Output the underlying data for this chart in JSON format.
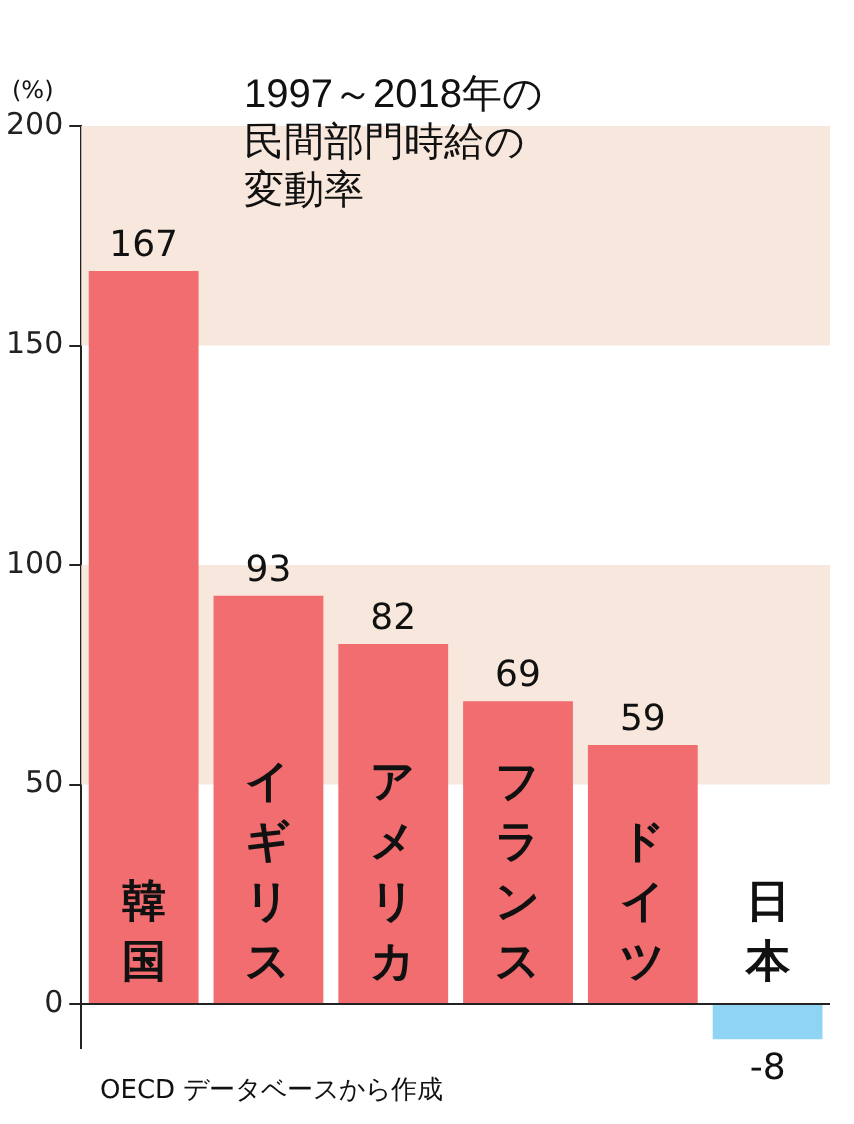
{
  "chart_data": {
    "type": "bar",
    "title": "1997～2018年の民間部門時給の変動率",
    "ylabel": "(%)",
    "categories": [
      "韓国",
      "イギリス",
      "アメリカ",
      "フランス",
      "ドイツ",
      "日本"
    ],
    "values": [
      167,
      93,
      82,
      69,
      59,
      -8
    ],
    "colors": [
      "#f26d6f",
      "#f26d6f",
      "#f26d6f",
      "#f26d6f",
      "#f26d6f",
      "#8fd4f2"
    ],
    "ylim": [
      -10,
      200
    ],
    "yticks": [
      0,
      50,
      100,
      150,
      200
    ],
    "grid": false,
    "data_labels": true,
    "bands": [
      {
        "axis": "y",
        "from": 50,
        "to": 100,
        "color": "#f8e7dc"
      },
      {
        "axis": "y",
        "from": 150,
        "to": 200,
        "color": "#f8e7dc"
      }
    ],
    "annotations": [
      "OECD データベースから作成"
    ]
  }
}
